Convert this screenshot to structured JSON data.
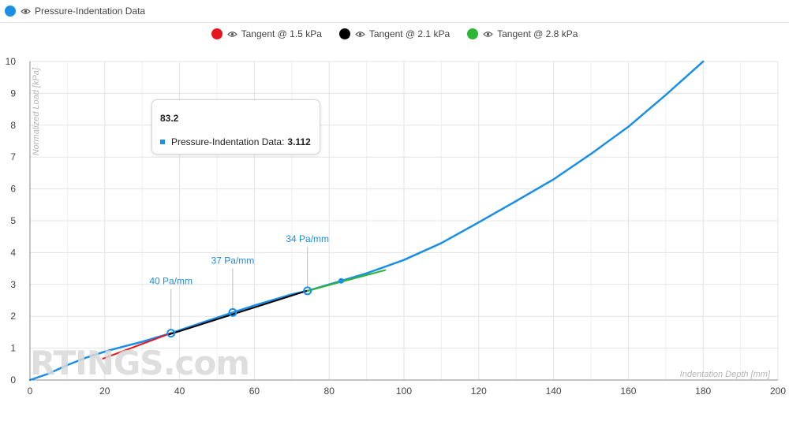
{
  "legend": {
    "main": {
      "label": "Pressure-Indentation Data",
      "color": "#1a8fe3"
    },
    "tangents": [
      {
        "label": "Tangent @ 1.5 kPa",
        "color": "#e8141c"
      },
      {
        "label": "Tangent @ 2.1 kPa",
        "color": "#000000"
      },
      {
        "label": "Tangent @ 2.8 kPa",
        "color": "#2db534"
      }
    ]
  },
  "tooltip": {
    "title": "83.2",
    "series_label": "Pressure-Indentation Data:",
    "value": "3.112"
  },
  "watermark": "RTINGS.com",
  "chart_data": {
    "type": "line",
    "xlabel": "Indentation Depth [mm]",
    "ylabel": "Normalized Load [kPa]",
    "xlim": [
      0,
      200
    ],
    "ylim": [
      0,
      10
    ],
    "x_ticks": [
      0,
      20,
      40,
      60,
      80,
      100,
      120,
      140,
      160,
      180,
      200
    ],
    "y_ticks": [
      0,
      1,
      2,
      3,
      4,
      5,
      6,
      7,
      8,
      9,
      10
    ],
    "grid": true,
    "series": [
      {
        "name": "Pressure-Indentation Data",
        "color": "#1a8fe3",
        "x": [
          0,
          5,
          10,
          15,
          20,
          25,
          30,
          37.7,
          45,
          54.2,
          60,
          70,
          74.2,
          83.2,
          90,
          100,
          110,
          120,
          130,
          140,
          150,
          160,
          170,
          180
        ],
        "y": [
          0,
          0.2,
          0.47,
          0.7,
          0.89,
          1.05,
          1.2,
          1.47,
          1.76,
          2.12,
          2.34,
          2.69,
          2.8,
          3.112,
          3.35,
          3.77,
          4.3,
          4.95,
          5.62,
          6.3,
          7.1,
          7.95,
          8.95,
          10.0
        ]
      },
      {
        "name": "Tangent @ 1.5 kPa",
        "color": "#e8141c",
        "x": [
          19.5,
          37.7
        ],
        "y": [
          0.67,
          1.47
        ]
      },
      {
        "name": "Tangent @ 2.1 kPa",
        "color": "#000000",
        "x": [
          37,
          74
        ],
        "y": [
          1.42,
          2.8
        ]
      },
      {
        "name": "Tangent @ 2.8 kPa",
        "color": "#2db534",
        "x": [
          74.2,
          95
        ],
        "y": [
          2.8,
          3.45
        ]
      }
    ],
    "markers": [
      {
        "x": 37.7,
        "y": 1.47,
        "label": "40 Pa/mm"
      },
      {
        "x": 54.2,
        "y": 2.12,
        "label": "37 Pa/mm"
      },
      {
        "x": 74.2,
        "y": 2.8,
        "label": "34 Pa/mm"
      }
    ],
    "hover_point": {
      "x": 83.2,
      "y": 3.112
    }
  }
}
